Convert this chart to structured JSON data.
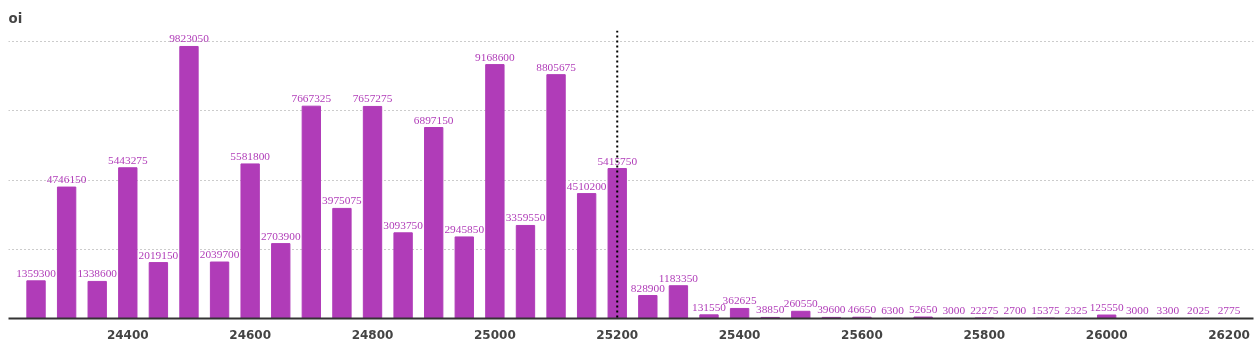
{
  "chart_data": {
    "type": "bar",
    "ylabel": "oi",
    "x": [
      24250,
      24300,
      24350,
      24400,
      24450,
      24500,
      24550,
      24600,
      24650,
      24700,
      24750,
      24800,
      24850,
      24900,
      24950,
      25000,
      25050,
      25100,
      25150,
      25200,
      25250,
      25300,
      25350,
      25400,
      25450,
      25500,
      25550,
      25600,
      25650,
      25700,
      25750,
      25800,
      25850,
      25900,
      25950,
      26000,
      26050,
      26100,
      26150,
      26200
    ],
    "values": [
      1359300,
      4746150,
      1338600,
      5443275,
      2019150,
      9823050,
      2039700,
      5581800,
      2703900,
      7667325,
      3975075,
      7657275,
      3093750,
      6897150,
      2945850,
      9168600,
      3359550,
      8805675,
      4510200,
      5415750,
      828900,
      1183350,
      131550,
      362625,
      38850,
      260550,
      39600,
      46650,
      6300,
      52650,
      3000,
      22275,
      2700,
      15375,
      2325,
      125550,
      3000,
      3300,
      2025,
      2775
    ],
    "color": "#b03cb8",
    "data_labels": true,
    "xlim": [
      24205,
      26240
    ],
    "xticks": [
      24400,
      24600,
      24800,
      25000,
      25200,
      25400,
      25600,
      25800,
      26000,
      26200
    ],
    "ylim": [
      0,
      10400000
    ],
    "yticks": [
      {
        "value": 2500000,
        "label": null
      },
      {
        "value": 5000000,
        "label": null
      },
      {
        "value": 7500000,
        "label": null
      },
      {
        "value": 10000000,
        "label": null
      }
    ],
    "tick_labels": "x",
    "grid": "y",
    "ref_lines": [
      {
        "axis": "x",
        "value": 25200,
        "color": "#000000",
        "line_style": "dotted"
      }
    ]
  }
}
